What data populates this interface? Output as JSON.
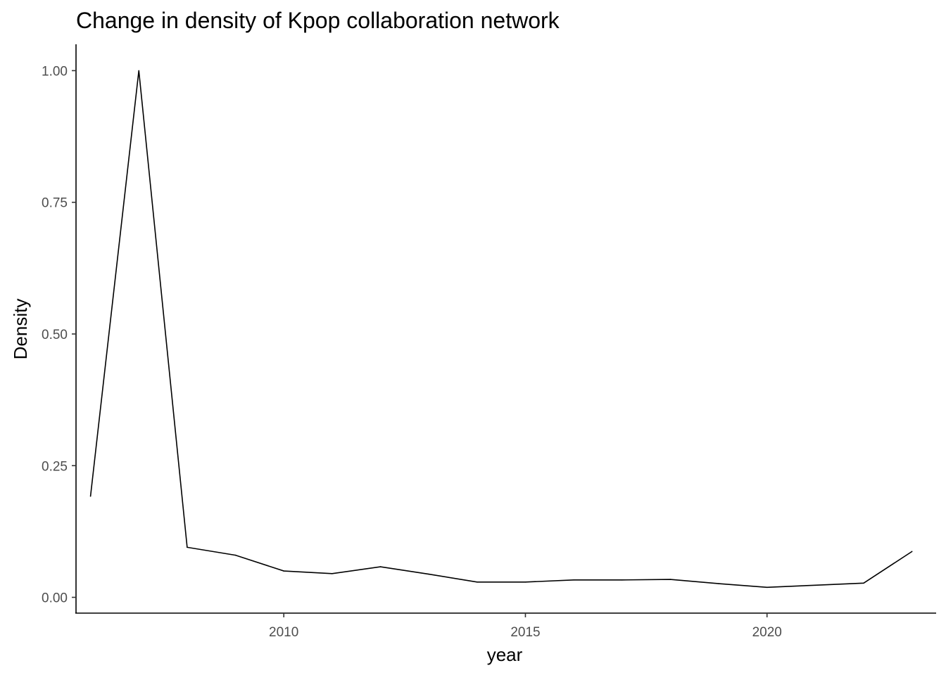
{
  "chart_data": {
    "type": "line",
    "title": "Change in density of Kpop collaboration network",
    "xlabel": "year",
    "ylabel": "Density",
    "xlim": [
      2005.7,
      2023.5
    ],
    "ylim": [
      -0.03,
      1.05
    ],
    "x_ticks": [
      2010,
      2015,
      2020
    ],
    "x_tick_labels": [
      "2010",
      "2015",
      "2020"
    ],
    "y_ticks": [
      0,
      0.25,
      0.5,
      0.75,
      1
    ],
    "y_tick_labels": [
      "0.00",
      "0.25",
      "0.50",
      "0.75",
      "1.00"
    ],
    "grid": false,
    "legend": "none",
    "series": [
      {
        "color": "#000000",
        "x": [
          2006,
          2007,
          2008,
          2009,
          2010,
          2011,
          2012,
          2013,
          2014,
          2015,
          2016,
          2017,
          2018,
          2019,
          2020,
          2021,
          2022,
          2023
        ],
        "y": [
          0.192,
          1.0,
          0.095,
          0.08,
          0.05,
          0.045,
          0.058,
          0.044,
          0.029,
          0.029,
          0.033,
          0.033,
          0.034,
          0.026,
          0.019,
          0.023,
          0.027,
          0.087
        ]
      }
    ]
  }
}
